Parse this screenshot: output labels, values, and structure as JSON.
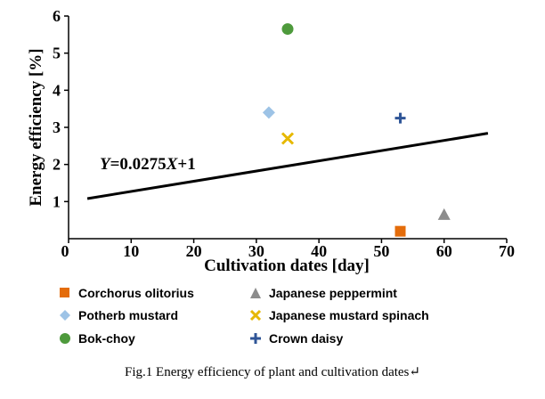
{
  "chart_data": {
    "type": "scatter",
    "xlabel": "Cultivation dates [day]",
    "ylabel": "Energy efficiency [%]",
    "xlim": [
      0,
      70
    ],
    "ylim": [
      0,
      6
    ],
    "xticks": [
      "0",
      "10",
      "20",
      "30",
      "40",
      "50",
      "60",
      "70"
    ],
    "yticks": [
      "1",
      "2",
      "3",
      "4",
      "5",
      "6"
    ],
    "series": [
      {
        "name": "Corchorus olitorius",
        "marker": "square",
        "color": "#E46C0A",
        "x": 53,
        "y": 0.2
      },
      {
        "name": "Japanese peppermint",
        "marker": "triangle",
        "color": "#8C8C8C",
        "x": 60,
        "y": 0.65
      },
      {
        "name": "Potherb mustard",
        "marker": "diamond",
        "color": "#9DC3E6",
        "x": 32,
        "y": 3.4
      },
      {
        "name": "Japanese mustard spinach",
        "marker": "x",
        "color": "#E6B800",
        "x": 35,
        "y": 2.7
      },
      {
        "name": "Bok-choy",
        "marker": "circle",
        "color": "#4E9A3C",
        "x": 35,
        "y": 5.65
      },
      {
        "name": "Crown daisy",
        "marker": "plus",
        "color": "#2F5597",
        "x": 53,
        "y": 3.25
      }
    ],
    "trendline": {
      "equation": "Y=0.0275X+1",
      "x_start": 3,
      "y_start": 1.08,
      "x_end": 67,
      "y_end": 2.84
    }
  },
  "caption": "Fig.1 Energy efficiency of plant and cultivation dates↵"
}
